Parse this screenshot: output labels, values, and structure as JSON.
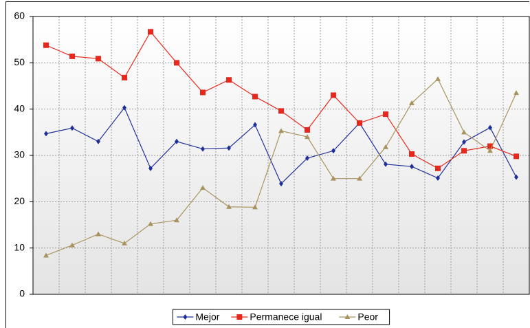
{
  "chart_data": {
    "type": "line",
    "categories": [
      null,
      null,
      null,
      null,
      null,
      null,
      null,
      null,
      null,
      null,
      null,
      null,
      null,
      null,
      null,
      null,
      null,
      null,
      null
    ],
    "series": [
      {
        "name": "Mejor",
        "color": "#1f2f9a",
        "marker": "diamond",
        "values": [
          34.7,
          35.9,
          33.0,
          40.3,
          27.2,
          33.0,
          31.4,
          31.6,
          36.6,
          23.9,
          29.4,
          31.0,
          37.0,
          28.1,
          27.6,
          25.1,
          32.9,
          36.0,
          25.3
        ]
      },
      {
        "name": "Permanece igual",
        "color": "#e8281c",
        "marker": "square",
        "values": [
          53.8,
          51.4,
          50.9,
          46.8,
          56.7,
          50.0,
          43.6,
          46.3,
          42.7,
          39.6,
          35.5,
          43.0,
          37.0,
          38.9,
          30.3,
          27.2,
          31.0,
          32.0,
          29.8
        ]
      },
      {
        "name": "Peor",
        "color": "#a8935e",
        "marker": "triangle",
        "values": [
          8.4,
          10.6,
          13.0,
          11.0,
          15.2,
          16.0,
          23.0,
          18.9,
          18.8,
          35.3,
          34.0,
          25.0,
          25.0,
          31.8,
          41.3,
          46.5,
          35.0,
          31.0,
          43.5
        ]
      }
    ],
    "ylim": [
      0,
      60
    ],
    "yticks": [
      0,
      10,
      20,
      30,
      40,
      50,
      60
    ],
    "grid": true,
    "legend": "bottom"
  }
}
